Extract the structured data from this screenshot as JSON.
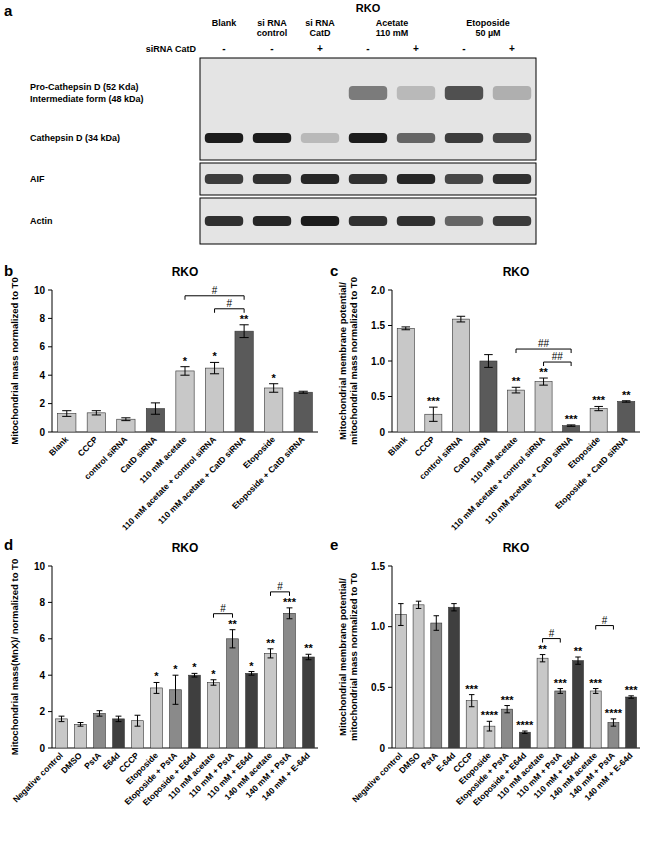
{
  "blot": {
    "panel": "a",
    "title": "RKO",
    "sirna_label": "siRNA CatD",
    "groups": [
      {
        "label": [
          "Blank"
        ],
        "sirna": [
          "-"
        ]
      },
      {
        "label": [
          "si RNA",
          "control"
        ],
        "sirna": [
          "-"
        ]
      },
      {
        "label": [
          "si RNA",
          "CatD"
        ],
        "sirna": [
          "+"
        ]
      },
      {
        "label": [
          "Acetate",
          "110 mM"
        ],
        "sirna": [
          "-",
          "+"
        ]
      },
      {
        "label": [
          "Etoposide",
          "50 µM"
        ],
        "sirna": [
          "-",
          "+"
        ]
      }
    ],
    "blots": [
      {
        "bands": [
          {
            "labels": [
              "Pro-Cathepsin D (52 Kda)",
              "Intermediate form (48 kDa)"
            ],
            "intensity": [
              0,
              0,
              0,
              0.5,
              0.2,
              0.7,
              0.25
            ]
          },
          {
            "labels": [
              "Cathepsin D (34 kDa)"
            ],
            "intensity": [
              0.95,
              0.95,
              0.2,
              0.95,
              0.6,
              0.8,
              0.75
            ]
          }
        ]
      },
      {
        "bands": [
          {
            "labels": [
              "AIF"
            ],
            "intensity": [
              0.8,
              0.85,
              0.9,
              0.85,
              0.9,
              0.75,
              0.85
            ]
          }
        ]
      },
      {
        "bands": [
          {
            "labels": [
              "Actin"
            ],
            "intensity": [
              0.85,
              0.9,
              0.95,
              0.85,
              0.85,
              0.6,
              0.8
            ]
          }
        ]
      }
    ]
  },
  "chart_data": [
    {
      "type": "bar",
      "panel": "b",
      "title": "RKO",
      "y_label": [
        "Mitochondrial mass normalized to T0"
      ],
      "categories": [
        "Blank",
        "CCCP",
        "control siRNA",
        "CatD siRNA",
        "110 mM acetate",
        "110 mM acetate + control siRNA",
        "110 mM acetate + CatD siRNA",
        "Etoposide",
        "Etoposide + CatD siRNA"
      ],
      "values": [
        1.3,
        1.35,
        0.9,
        1.65,
        4.3,
        4.5,
        7.1,
        3.1,
        2.8
      ],
      "errors": [
        0.2,
        0.15,
        0.1,
        0.4,
        0.3,
        0.4,
        0.45,
        0.3,
        0.07
      ],
      "colors": [
        "#c8c8c8",
        "#c8c8c8",
        "#c8c8c8",
        "#5a5a5a",
        "#c8c8c8",
        "#c8c8c8",
        "#5a5a5a",
        "#c8c8c8",
        "#5a5a5a"
      ],
      "significance": [
        null,
        null,
        null,
        null,
        "*",
        "*",
        "**",
        "*",
        null
      ],
      "comparisons": [
        {
          "from": 5,
          "to": 6,
          "label": "#"
        },
        {
          "from": 4,
          "to": 6,
          "label": "#"
        }
      ],
      "ylim": [
        0,
        10
      ],
      "yticks": [
        0,
        2,
        4,
        6,
        8,
        10
      ]
    },
    {
      "type": "bar",
      "panel": "c",
      "title": "RKO",
      "y_label": [
        "Mitochondrial membrane potential/",
        "mitochondrial mass normalized to T0"
      ],
      "categories": [
        "Blank",
        "CCCP",
        "control siRNA",
        "CatD siRNA",
        "110 mM acetate",
        "110 mM acetate + control siRNA",
        "110 mM acetate + CatD siRNA",
        "Etoposide",
        "Etoposide + CatD siRNA"
      ],
      "values": [
        1.46,
        0.25,
        1.59,
        1.0,
        0.59,
        0.71,
        0.09,
        0.33,
        0.43
      ],
      "errors": [
        0.02,
        0.1,
        0.04,
        0.09,
        0.04,
        0.05,
        0.01,
        0.03,
        0.01
      ],
      "colors": [
        "#c8c8c8",
        "#c8c8c8",
        "#c8c8c8",
        "#5a5a5a",
        "#c8c8c8",
        "#c8c8c8",
        "#5a5a5a",
        "#c8c8c8",
        "#5a5a5a"
      ],
      "significance": [
        null,
        "***",
        null,
        null,
        "**",
        "**",
        "***",
        "***",
        "**"
      ],
      "comparisons": [
        {
          "from": 5,
          "to": 6,
          "label": "##"
        },
        {
          "from": 4,
          "to": 6,
          "label": "##"
        }
      ],
      "ylim": [
        0,
        2
      ],
      "yticks": [
        0,
        0.5,
        {
          "value": 1,
          "label": "1.0"
        },
        1.5,
        {
          "value": 2,
          "label": "2.0"
        }
      ]
    },
    {
      "type": "bar",
      "panel": "d",
      "title": "RKO",
      "y_label": [
        "Mitochondrial mass(MnX)/ normalized to T0"
      ],
      "categories": [
        "Negative control",
        "DMSO",
        "PstA",
        "E64d",
        "CCCP",
        "Etoposide",
        "Etoposide + PstA",
        "Etoposide + E64d",
        "110 mM acetate",
        "110 mM + PstA",
        "110 mM + E64d",
        "140 mM acetate",
        "140 mM + PstA",
        "140 mM + E-64d"
      ],
      "values": [
        1.6,
        1.3,
        1.9,
        1.6,
        1.5,
        3.3,
        3.2,
        4.0,
        3.6,
        6.0,
        4.1,
        5.2,
        7.4,
        5.0
      ],
      "errors": [
        0.15,
        0.1,
        0.15,
        0.15,
        0.3,
        0.3,
        0.8,
        0.1,
        0.15,
        0.5,
        0.1,
        0.25,
        0.3,
        0.15
      ],
      "colors": [
        "#c8c8c8",
        "#c8c8c8",
        "#8a8a8a",
        "#3f3f3f",
        "#c8c8c8",
        "#c8c8c8",
        "#8a8a8a",
        "#3f3f3f",
        "#c8c8c8",
        "#8a8a8a",
        "#3f3f3f",
        "#c8c8c8",
        "#8a8a8a",
        "#3f3f3f"
      ],
      "significance": [
        null,
        null,
        null,
        null,
        null,
        "*",
        "*",
        "*",
        "*",
        "**",
        "*",
        "**",
        "***",
        "**"
      ],
      "comparisons": [
        {
          "from": 8,
          "to": 9,
          "label": "#"
        },
        {
          "from": 11,
          "to": 12,
          "label": "#"
        }
      ],
      "ylim": [
        0,
        10
      ],
      "yticks": [
        0,
        2,
        4,
        6,
        8,
        10
      ]
    },
    {
      "type": "bar",
      "panel": "e",
      "title": "RKO",
      "y_label": [
        "Mitochondrial membrane potential/",
        "mitochondrial mass normalized to T0"
      ],
      "categories": [
        "Negative control",
        "DMSO",
        "PstA",
        "E-64d",
        "CCCP",
        "Etoposide",
        "Etoposide + PstA",
        "Etoposide + E64d",
        "110 mM acetate",
        "110 mM + PstA",
        "110 mM + E64d",
        "140 mM acetate",
        "140 mM + PstA",
        "140 mM + E-64d"
      ],
      "values": [
        1.1,
        1.18,
        1.03,
        1.16,
        0.39,
        0.18,
        0.32,
        0.13,
        0.74,
        0.47,
        0.72,
        0.47,
        0.21,
        0.42
      ],
      "errors": [
        0.09,
        0.03,
        0.06,
        0.03,
        0.05,
        0.04,
        0.03,
        0.01,
        0.03,
        0.02,
        0.03,
        0.02,
        0.03,
        0.01
      ],
      "colors": [
        "#c8c8c8",
        "#c8c8c8",
        "#8a8a8a",
        "#3f3f3f",
        "#c8c8c8",
        "#c8c8c8",
        "#8a8a8a",
        "#3f3f3f",
        "#c8c8c8",
        "#8a8a8a",
        "#3f3f3f",
        "#c8c8c8",
        "#8a8a8a",
        "#3f3f3f"
      ],
      "significance": [
        null,
        null,
        null,
        null,
        "***",
        "****",
        "***",
        "****",
        "**",
        "***",
        "**",
        "***",
        "****",
        "***"
      ],
      "comparisons": [
        {
          "from": 8,
          "to": 9,
          "label": "#"
        },
        {
          "from": 11,
          "to": 12,
          "label": "#"
        }
      ],
      "ylim": [
        0,
        1.5
      ],
      "yticks": [
        0,
        0.5,
        {
          "value": 1,
          "label": "1.0"
        },
        1.5
      ]
    }
  ]
}
